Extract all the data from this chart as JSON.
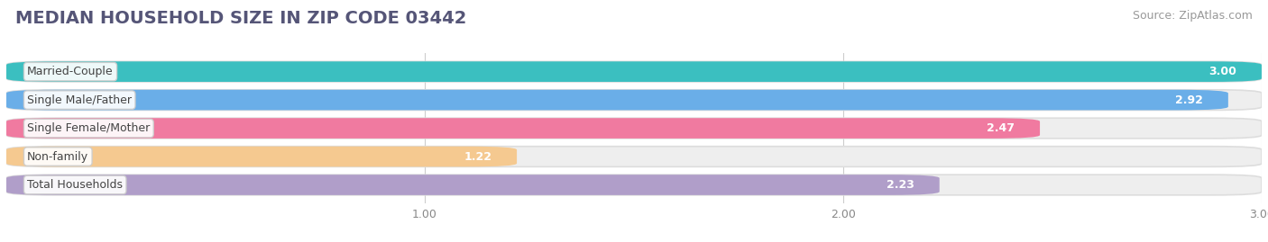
{
  "title": "MEDIAN HOUSEHOLD SIZE IN ZIP CODE 03442",
  "source": "Source: ZipAtlas.com",
  "categories": [
    "Married-Couple",
    "Single Male/Father",
    "Single Female/Mother",
    "Non-family",
    "Total Households"
  ],
  "values": [
    3.0,
    2.92,
    2.47,
    1.22,
    2.23
  ],
  "bar_colors": [
    "#3bbfc0",
    "#6aaee8",
    "#f07aa0",
    "#f5c990",
    "#b09ec9"
  ],
  "background_color": "#ffffff",
  "bar_bg_color": "#eeeeee",
  "xlim_min": 0,
  "xlim_max": 3.0,
  "xticks": [
    1.0,
    2.0,
    3.0
  ],
  "title_fontsize": 14,
  "label_fontsize": 9,
  "value_fontsize": 9,
  "source_fontsize": 9
}
